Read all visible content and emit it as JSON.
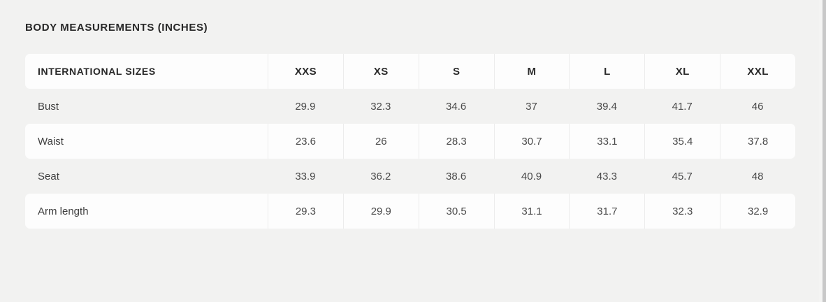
{
  "page": {
    "title": "BODY MEASUREMENTS (INCHES)"
  },
  "table": {
    "header_label": "INTERNATIONAL SIZES",
    "sizes": [
      "XXS",
      "XS",
      "S",
      "M",
      "L",
      "XL",
      "XXL"
    ],
    "rows": [
      {
        "label": "Bust",
        "values": [
          "29.9",
          "32.3",
          "34.6",
          "37",
          "39.4",
          "41.7",
          "46"
        ]
      },
      {
        "label": "Waist",
        "values": [
          "23.6",
          "26",
          "28.3",
          "30.7",
          "33.1",
          "35.4",
          "37.8"
        ]
      },
      {
        "label": "Seat",
        "values": [
          "33.9",
          "36.2",
          "38.6",
          "40.9",
          "43.3",
          "45.7",
          "48"
        ]
      },
      {
        "label": "Arm length",
        "values": [
          "29.3",
          "29.9",
          "30.5",
          "31.1",
          "31.7",
          "32.3",
          "32.9"
        ]
      }
    ]
  },
  "colors": {
    "page_background": "#f2f2f1",
    "row_band": "#fdfdfd",
    "separator": "#ececec",
    "scrollbar_thumb": "#c8c8c8"
  }
}
